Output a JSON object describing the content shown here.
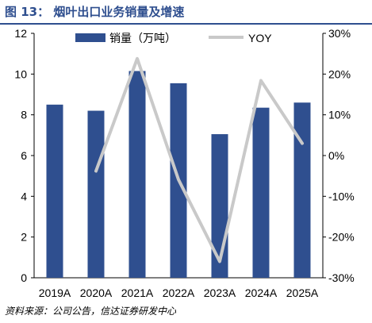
{
  "figure": {
    "label": "图 13：",
    "title": "烟叶出口业务销量及增速",
    "source": "资料来源：公司公告，信达证券研发中心"
  },
  "colors": {
    "bar": "#2f4f8f",
    "line": "#c9c9c9",
    "title": "#2f4f8f"
  },
  "chart_data": {
    "type": "bar",
    "categories": [
      "2019A",
      "2020A",
      "2021A",
      "2022A",
      "2023A",
      "2024A",
      "2025A"
    ],
    "series": [
      {
        "name": "销量（万吨）",
        "type": "bar",
        "axis": "left",
        "values": [
          8.5,
          8.2,
          10.15,
          9.55,
          7.05,
          8.35,
          8.6
        ]
      },
      {
        "name": "YOY",
        "type": "line",
        "axis": "right",
        "values": [
          null,
          -3.8,
          23.8,
          -5.9,
          -26.0,
          18.4,
          3.0
        ]
      }
    ],
    "y_left": {
      "lim": [
        0,
        12
      ],
      "ticks": [
        "0",
        "2",
        "4",
        "6",
        "8",
        "10",
        "12"
      ]
    },
    "y_right": {
      "lim": [
        -30,
        30
      ],
      "ticks": [
        "-30%",
        "-20%",
        "-10%",
        "0%",
        "10%",
        "20%",
        "30%"
      ]
    },
    "legend": [
      "销量（万吨）",
      "YOY"
    ],
    "legend_position": "top",
    "grid": false
  }
}
